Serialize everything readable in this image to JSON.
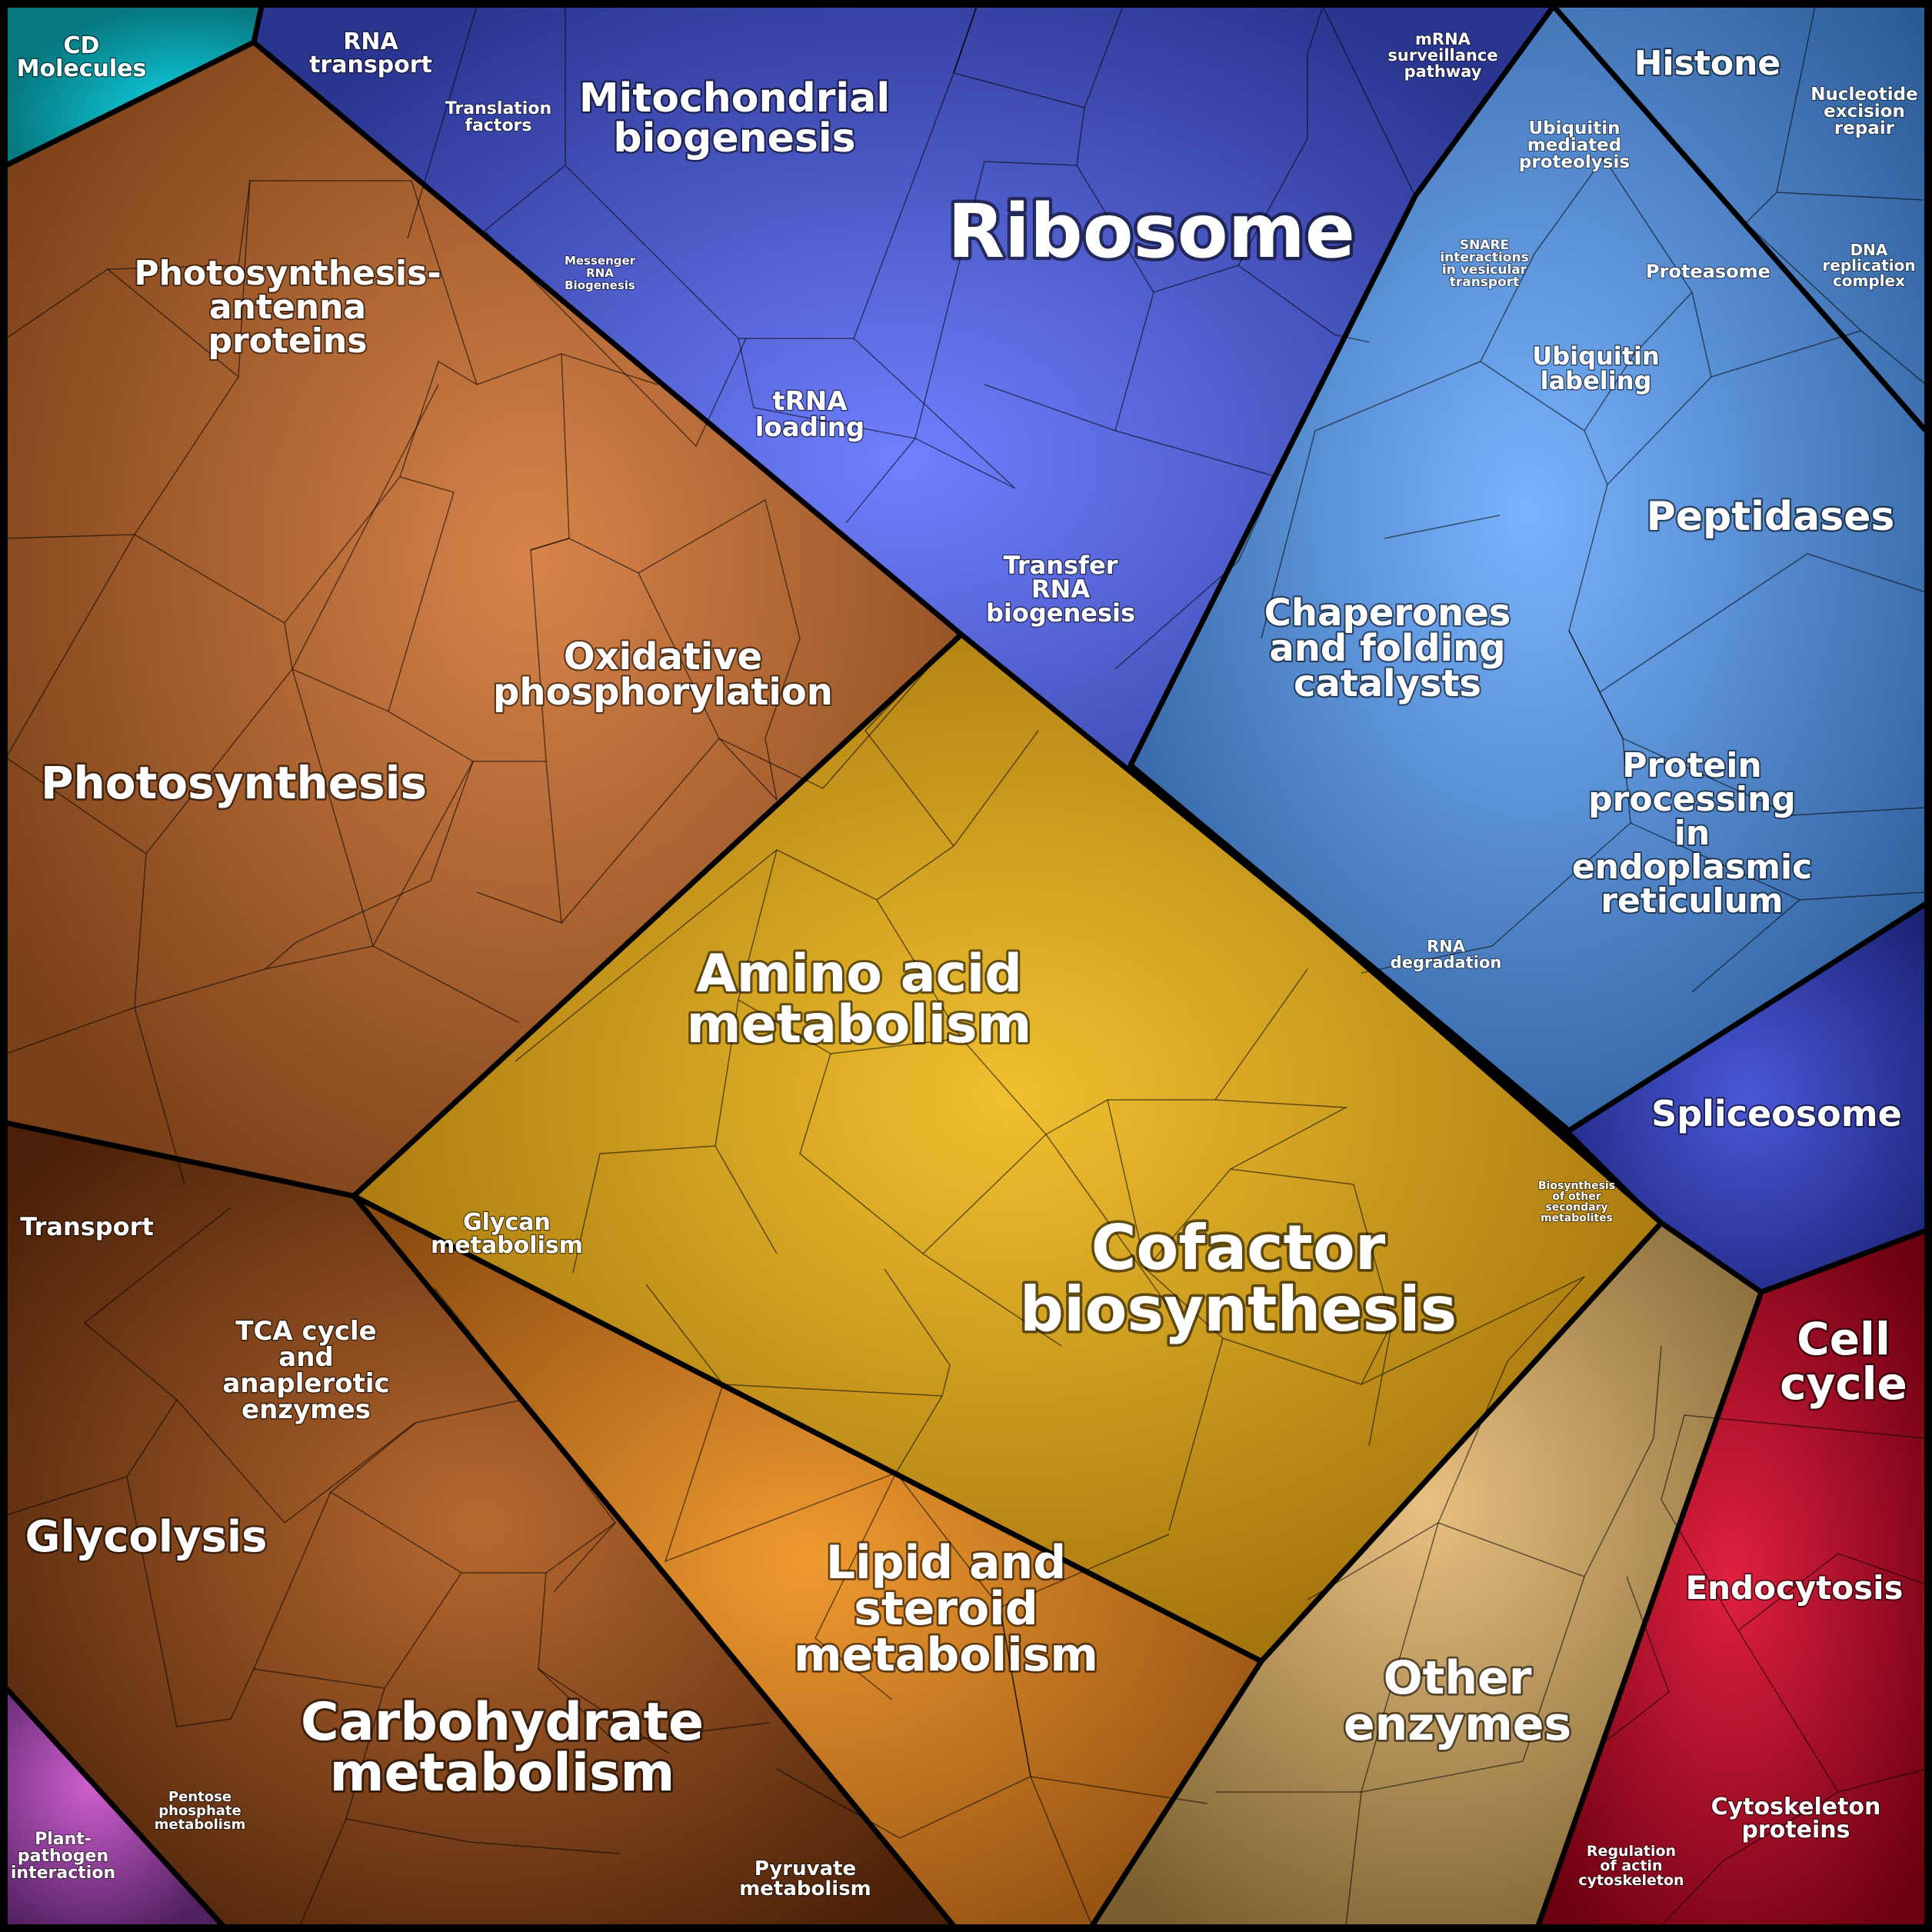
{
  "labels": {
    "cd_molecules": [
      "CD",
      "Molecules"
    ],
    "rna_transport": [
      "RNA",
      "transport"
    ],
    "translation_factors": [
      "Translation",
      "factors"
    ],
    "mitochondrial_biogenesis": [
      "Mitochondrial",
      "biogenesis"
    ],
    "messenger_rna_biogenesis": [
      "Messenger",
      "RNA",
      "Biogenesis"
    ],
    "ribosome": [
      "Ribosome"
    ],
    "mrna_surveillance": [
      "mRNA",
      "surveillance",
      "pathway"
    ],
    "histone": [
      "Histone"
    ],
    "nucleotide_excision_repair": [
      "Nucleotide",
      "excision",
      "repair"
    ],
    "ubiquitin_mediated_proteolysis": [
      "Ubiquitin",
      "mediated",
      "proteolysis"
    ],
    "dna_replication_complex": [
      "DNA",
      "replication",
      "complex"
    ],
    "snare_interactions": [
      "SNARE",
      "interactions",
      "in vesicular",
      "transport"
    ],
    "proteasome": [
      "Proteasome"
    ],
    "ubiquitin_labeling": [
      "Ubiquitin",
      "labeling"
    ],
    "trna_loading": [
      "tRNA",
      "loading"
    ],
    "peptidases": [
      "Peptidases"
    ],
    "transfer_rna_biogenesis": [
      "Transfer",
      "RNA",
      "biogenesis"
    ],
    "chaperones": [
      "Chaperones",
      "and folding",
      "catalysts"
    ],
    "protein_processing_er": [
      "Protein",
      "processing",
      "in",
      "endoplasmic",
      "reticulum"
    ],
    "rna_degradation": [
      "RNA",
      "degradation"
    ],
    "spliceosome": [
      "Spliceosome"
    ],
    "photosynthesis_antenna": [
      "Photosynthesis-",
      "antenna",
      "proteins"
    ],
    "oxidative_phosphorylation": [
      "Oxidative",
      "phosphorylation"
    ],
    "photosynthesis": [
      "Photosynthesis"
    ],
    "amino_acid_metabolism": [
      "Amino acid",
      "metabolism"
    ],
    "biosynthesis_secondary": [
      "Biosynthesis",
      "of other",
      "secondary",
      "metabolites"
    ],
    "transport": [
      "Transport"
    ],
    "glycan_metabolism": [
      "Glycan",
      "metabolism"
    ],
    "cofactor_biosynthesis": [
      "Cofactor",
      "biosynthesis"
    ],
    "tca_cycle": [
      "TCA cycle",
      "and",
      "anaplerotic",
      "enzymes"
    ],
    "cell_cycle": [
      "Cell",
      "cycle"
    ],
    "glycolysis": [
      "Glycolysis"
    ],
    "lipid_steroid": [
      "Lipid and",
      "steroid",
      "metabolism"
    ],
    "endocytosis": [
      "Endocytosis"
    ],
    "other_enzymes": [
      "Other",
      "enzymes"
    ],
    "carbohydrate_metabolism": [
      "Carbohydrate",
      "metabolism"
    ],
    "pentose_phosphate": [
      "Pentose",
      "phosphate",
      "metabolism"
    ],
    "plant_pathogen": [
      "Plant-",
      "pathogen",
      "interaction"
    ],
    "pyruvate_metabolism": [
      "Pyruvate",
      "metabolism"
    ],
    "cytoskeleton_proteins": [
      "Cytoskeleton",
      "proteins"
    ],
    "regulation_actin": [
      "Regulation",
      "of actin",
      "cytoskeleton"
    ]
  },
  "colors": {
    "metabolism": "#c0803a",
    "genetic_information_processing": "#5060d0",
    "protein_fate": "#4a86c8",
    "cellular_processes": "#b01830",
    "cd_molecules": "#10a8b8",
    "other_enzymes": "#c8a060",
    "plant_pathogen": "#a040a0"
  }
}
